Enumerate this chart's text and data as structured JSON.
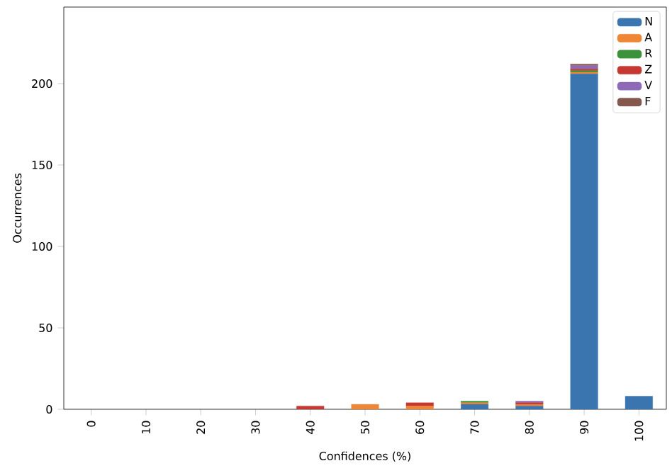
{
  "chart_data": {
    "type": "bar",
    "stacked": true,
    "xlabel": "Confidences (%)",
    "ylabel": "Occurrences",
    "categories": [
      "0",
      "10",
      "20",
      "30",
      "40",
      "50",
      "60",
      "70",
      "80",
      "90",
      "100"
    ],
    "series": [
      {
        "name": "N",
        "color": "#3a75af",
        "values": [
          0,
          0,
          0,
          0,
          0,
          0,
          0,
          3,
          2,
          206,
          8
        ]
      },
      {
        "name": "A",
        "color": "#ef8636",
        "values": [
          0,
          0,
          0,
          0,
          0,
          3,
          2,
          1,
          1,
          1,
          0
        ]
      },
      {
        "name": "R",
        "color": "#3b923b",
        "values": [
          0,
          0,
          0,
          0,
          0,
          0,
          0,
          1,
          0,
          1,
          0
        ]
      },
      {
        "name": "Z",
        "color": "#c53932",
        "values": [
          0,
          0,
          0,
          0,
          2,
          0,
          2,
          0,
          1,
          1,
          0
        ]
      },
      {
        "name": "V",
        "color": "#8d69b8",
        "values": [
          0,
          0,
          0,
          0,
          0,
          0,
          0,
          0,
          1,
          2,
          0
        ]
      },
      {
        "name": "F",
        "color": "#85584e",
        "values": [
          0,
          0,
          0,
          0,
          0,
          0,
          0,
          0,
          0,
          1,
          0
        ]
      }
    ],
    "ylim": [
      0,
      247
    ],
    "yticks": [
      0,
      50,
      100,
      150,
      200
    ],
    "legend": "top right"
  }
}
